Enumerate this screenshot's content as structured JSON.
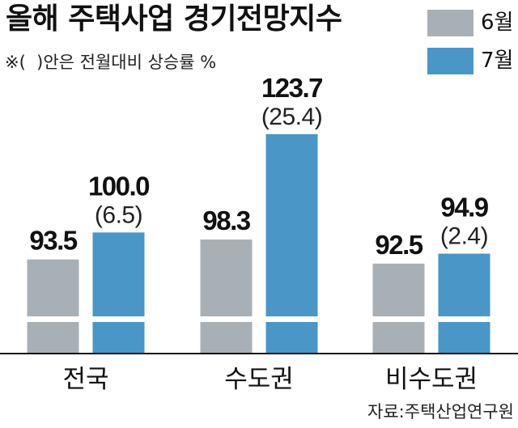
{
  "chart_data": {
    "type": "bar",
    "title": "올해 주택사업 경기전망지수",
    "note": "※(  )안은 전월대비 상승률 %",
    "source": "자료:주택산업연구원",
    "categories": [
      "전국",
      "수도권",
      "비수도권"
    ],
    "series": [
      {
        "name": "6월",
        "color": "#a8b0b5",
        "values": [
          93.5,
          98.3,
          92.5
        ],
        "labels": [
          "93.5",
          "98.3",
          "92.5"
        ]
      },
      {
        "name": "7월",
        "color": "#4a96c6",
        "values": [
          100.0,
          123.7,
          94.9
        ],
        "labels": [
          "100.0",
          "123.7",
          "94.9"
        ],
        "change_labels": [
          "(6.5)",
          "(25.4)",
          "(2.4)"
        ]
      }
    ],
    "legend_position": "top-right",
    "y_axis_break": true,
    "grid": false
  }
}
